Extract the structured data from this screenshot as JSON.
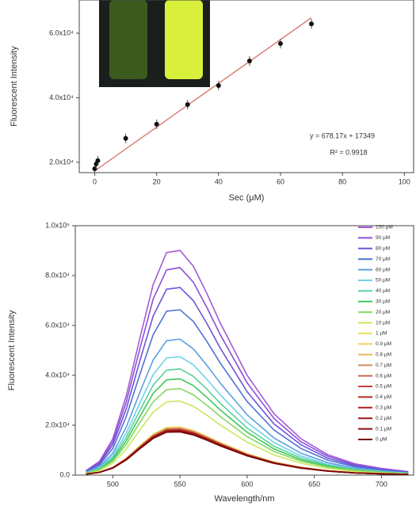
{
  "chart_data": [
    {
      "type": "scatter",
      "xlabel": "Sec (μM)",
      "ylabel": "Fluorescent Intensity",
      "x": [
        0,
        0.5,
        1,
        10,
        20,
        30,
        40,
        50,
        60,
        70
      ],
      "values": [
        18000,
        19500,
        20500,
        27400,
        31800,
        37900,
        43800,
        51400,
        56800,
        62900
      ],
      "errors": [
        1500,
        1500,
        1500,
        1500,
        1500,
        1500,
        1500,
        1500,
        1500,
        1500
      ],
      "color": "#111111",
      "fit": {
        "slope": 678.17,
        "intercept": 17349,
        "label": "y = 678.17x + 17349",
        "color": "#d9827a"
      },
      "r2_label": "R² = 0.9918",
      "xlim": [
        -5,
        103
      ],
      "xticks": [
        0,
        20,
        40,
        60,
        80,
        100
      ],
      "ylim": [
        16800,
        70300
      ],
      "yticks": [
        {
          "value": 20000,
          "label": "2.0x10⁴"
        },
        {
          "value": 40000,
          "label": "4.0x10⁴"
        },
        {
          "value": 60000,
          "label": "6.0x10⁴"
        }
      ]
    },
    {
      "type": "line",
      "xlabel": "Wavelength/nm",
      "ylabel": "Fluorescent Intensity",
      "x": [
        480,
        490,
        500,
        510,
        520,
        530,
        540,
        550,
        560,
        570,
        580,
        600,
        620,
        640,
        660,
        680,
        700,
        720
      ],
      "xlim": [
        472,
        724
      ],
      "xticks": [
        500,
        550,
        600,
        650,
        700
      ],
      "ylim": [
        0,
        100000
      ],
      "yticks": [
        {
          "value": 0,
          "label": "0.0"
        },
        {
          "value": 20000,
          "label": "2.0x10⁴"
        },
        {
          "value": 40000,
          "label": "4.0x10⁴"
        },
        {
          "value": 60000,
          "label": "6.0x10⁴"
        },
        {
          "value": 80000,
          "label": "8.0x10⁴"
        },
        {
          "value": 100000,
          "label": "1.0x10⁵"
        }
      ],
      "legend": "right",
      "series": [
        {
          "name": "100 μM",
          "color": "#a35bd4",
          "values": [
            1800,
            5500,
            14600,
            31900,
            54600,
            76400,
            89200,
            90100,
            83700,
            72800,
            61000,
            40000,
            24600,
            14600,
            8200,
            4600,
            2700,
            1400
          ]
        },
        {
          "name": "90 μM",
          "color": "#8c50d8",
          "values": [
            1700,
            5000,
            13400,
            29400,
            50400,
            70600,
            82300,
            83200,
            77300,
            67200,
            56300,
            37000,
            22700,
            13400,
            7600,
            4200,
            2500,
            1300
          ]
        },
        {
          "name": "80 μM",
          "color": "#6d54d8",
          "values": [
            1500,
            4600,
            12200,
            26600,
            45600,
            63800,
            74500,
            75200,
            69900,
            60800,
            50900,
            33400,
            20500,
            12200,
            6800,
            3800,
            2300,
            1100
          ]
        },
        {
          "name": "70 μM",
          "color": "#4f72d6",
          "values": [
            1300,
            4000,
            10700,
            23500,
            40200,
            56300,
            65700,
            66300,
            61600,
            53600,
            44900,
            29500,
            18100,
            10700,
            6000,
            3400,
            2000,
            1000
          ]
        },
        {
          "name": "60 μM",
          "color": "#5aa0e2",
          "values": [
            1100,
            3300,
            8800,
            19300,
            33000,
            46200,
            53900,
            54500,
            50600,
            44000,
            36900,
            24200,
            14900,
            8800,
            5000,
            2800,
            1700,
            800
          ]
        },
        {
          "name": "50 μM",
          "color": "#6fd2e8",
          "values": [
            1000,
            2900,
            7700,
            16800,
            28800,
            40300,
            47000,
            47500,
            44200,
            38400,
            32200,
            21100,
            13000,
            7700,
            4300,
            2400,
            1400,
            700
          ]
        },
        {
          "name": "40 μM",
          "color": "#5ccf9a",
          "values": [
            900,
            2600,
            6900,
            15100,
            25800,
            36100,
            42100,
            42600,
            39600,
            34400,
            28800,
            18900,
            11600,
            6900,
            3900,
            2200,
            1300,
            600
          ]
        },
        {
          "name": "30 μM",
          "color": "#3cc85a",
          "values": [
            800,
            2300,
            6200,
            13700,
            23400,
            32800,
            38200,
            38600,
            35900,
            31200,
            26100,
            17200,
            10500,
            6200,
            3500,
            2000,
            1200,
            600
          ]
        },
        {
          "name": "20 μM",
          "color": "#86d860",
          "values": [
            700,
            2100,
            5600,
            12300,
            21000,
            29400,
            34300,
            34700,
            32200,
            28000,
            23500,
            15400,
            9500,
            5600,
            3200,
            1800,
            1100,
            500
          ]
        },
        {
          "name": "10 μM",
          "color": "#c8e860",
          "values": [
            600,
            1800,
            4800,
            10500,
            18000,
            25200,
            29400,
            29700,
            27600,
            24000,
            20100,
            13200,
            8100,
            4800,
            2700,
            1500,
            900,
            500
          ]
        },
        {
          "name": "1 μM",
          "color": "#e8e060",
          "values": [
            400,
            1200,
            3100,
            6800,
            11700,
            16400,
            19100,
            19300,
            17900,
            15600,
            13100,
            8600,
            5300,
            3100,
            1800,
            1000,
            600,
            300
          ]
        },
        {
          "name": "0.9 μM",
          "color": "#f0cf60",
          "values": [
            400,
            1200,
            3100,
            6800,
            11600,
            16200,
            18900,
            19100,
            17800,
            15400,
            12900,
            8500,
            5200,
            3100,
            1700,
            1000,
            600,
            300
          ]
        },
        {
          "name": "0.8 μM",
          "color": "#e8b860",
          "values": [
            400,
            1100,
            3100,
            6700,
            11500,
            16000,
            18700,
            18900,
            17600,
            15300,
            12800,
            8400,
            5200,
            3100,
            1700,
            1000,
            600,
            300
          ]
        },
        {
          "name": "0.7 μM",
          "color": "#d89060",
          "values": [
            400,
            1100,
            3000,
            6600,
            11300,
            15900,
            18500,
            18700,
            17400,
            15100,
            12700,
            8300,
            5100,
            3000,
            1700,
            900,
            600,
            300
          ]
        },
        {
          "name": "0.6 μM",
          "color": "#c86850",
          "values": [
            400,
            1100,
            3000,
            6500,
            11200,
            15700,
            18300,
            18500,
            17200,
            15000,
            12500,
            8200,
            5000,
            3000,
            1700,
            900,
            600,
            300
          ]
        },
        {
          "name": "0.5 μM",
          "color": "#c84040",
          "values": [
            400,
            1100,
            3000,
            6500,
            11100,
            15500,
            18100,
            18300,
            17000,
            14800,
            12400,
            8100,
            5000,
            3000,
            1700,
            900,
            600,
            300
          ]
        },
        {
          "name": "0.4 μM",
          "color": "#b82828",
          "values": [
            400,
            1100,
            2900,
            6400,
            11000,
            15400,
            17900,
            18100,
            16800,
            14600,
            12300,
            8100,
            4900,
            2900,
            1600,
            900,
            500,
            300
          ]
        },
        {
          "name": "0.3 μM",
          "color": "#a82020",
          "values": [
            400,
            1100,
            2900,
            6300,
            10900,
            15200,
            17700,
            17900,
            16700,
            14500,
            12100,
            8000,
            4900,
            2900,
            1600,
            900,
            500,
            300
          ]
        },
        {
          "name": "0.2 μM",
          "color": "#981818",
          "values": [
            400,
            1100,
            2900,
            6300,
            10700,
            15000,
            17500,
            17700,
            16500,
            14300,
            12000,
            7900,
            4800,
            2900,
            1600,
            900,
            500,
            300
          ]
        },
        {
          "name": "0.1 μM",
          "color": "#881010",
          "values": [
            400,
            1100,
            2800,
            6200,
            10600,
            14900,
            17300,
            17500,
            16300,
            14200,
            11900,
            7800,
            4800,
            2800,
            1600,
            900,
            500,
            300
          ]
        },
        {
          "name": "0 μM",
          "color": "#780808",
          "values": [
            400,
            1100,
            2800,
            6100,
            10500,
            14700,
            17200,
            17300,
            16100,
            14000,
            11700,
            7700,
            4700,
            2800,
            1600,
            900,
            500,
            300
          ]
        }
      ]
    }
  ]
}
